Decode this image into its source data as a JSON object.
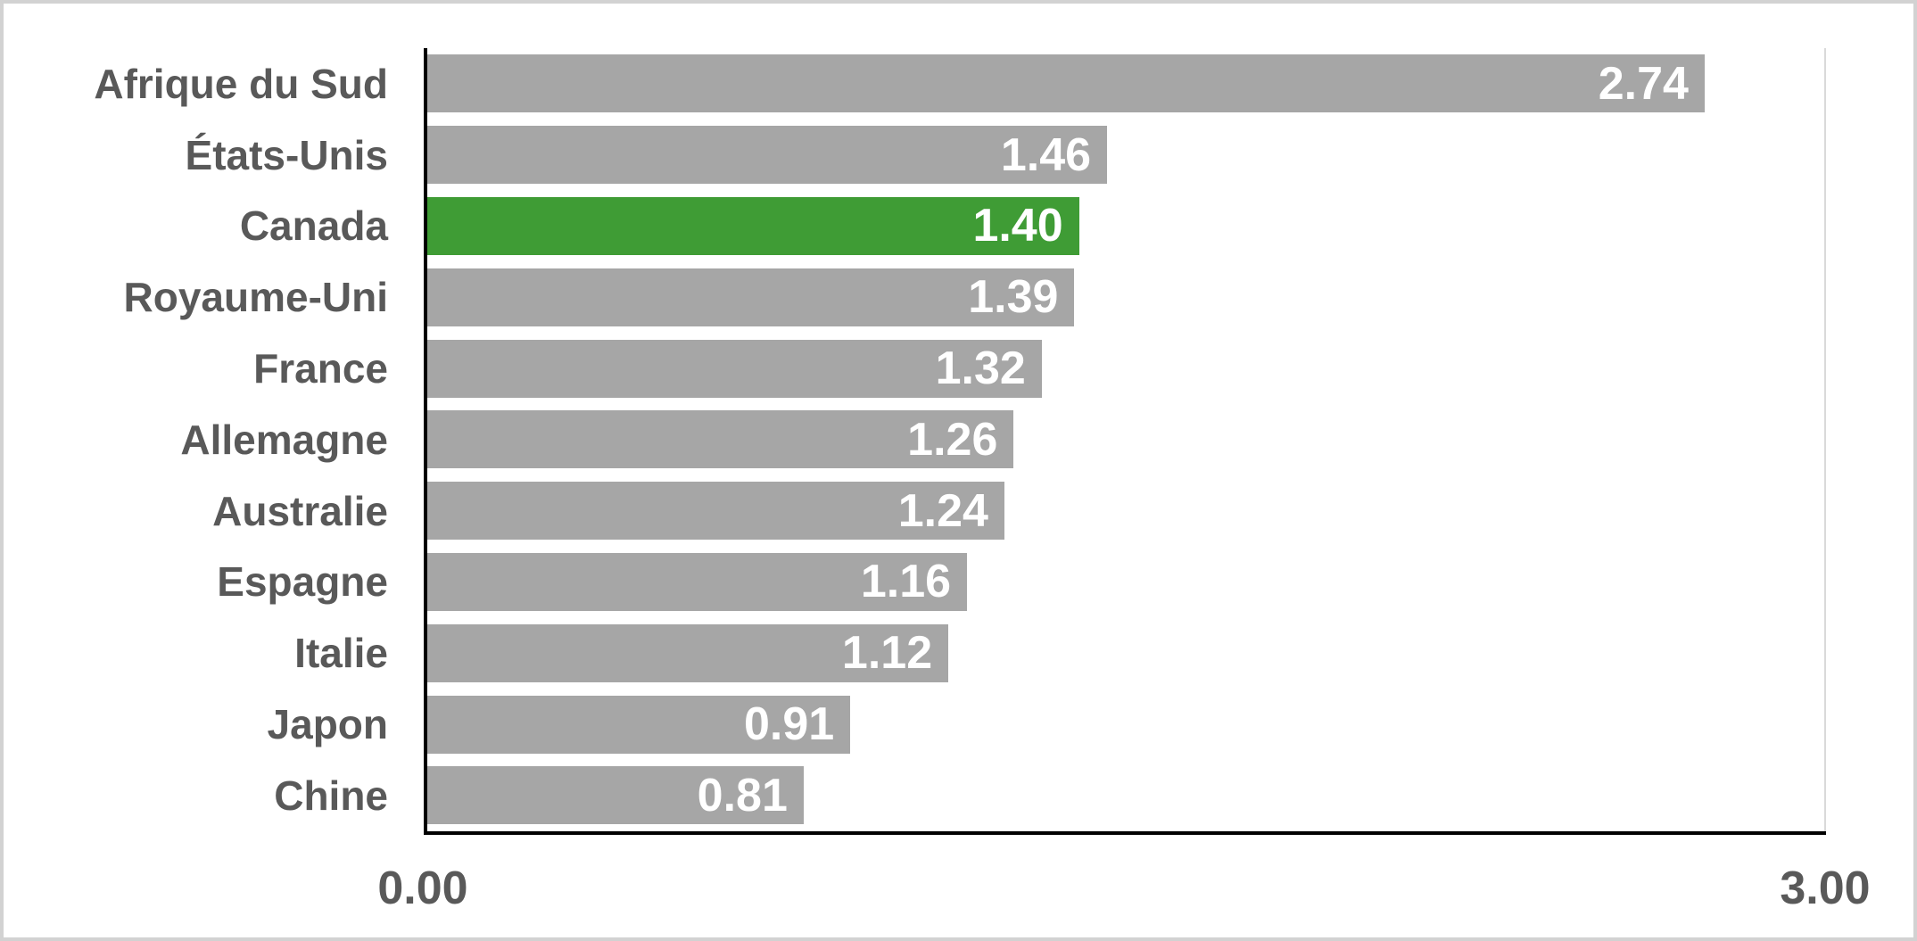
{
  "chart_data": {
    "type": "bar",
    "orientation": "horizontal",
    "title": "",
    "xlabel": "",
    "ylabel": "",
    "xlim": [
      0,
      3
    ],
    "x_tick_labels": [
      "0.00",
      "3.00"
    ],
    "grid": false,
    "legend": false,
    "categories": [
      "Afrique du Sud",
      "États-Unis",
      "Canada",
      "Royaume-Uni",
      "France",
      "Allemagne",
      "Australie",
      "Espagne",
      "Italie",
      "Japon",
      "Chine"
    ],
    "values": [
      2.74,
      1.46,
      1.4,
      1.39,
      1.32,
      1.26,
      1.24,
      1.16,
      1.12,
      0.91,
      0.81
    ],
    "value_labels": [
      "2.74",
      "1.46",
      "1.40",
      "1.39",
      "1.32",
      "1.26",
      "1.24",
      "1.16",
      "1.12",
      "0.91",
      "0.81"
    ],
    "highlight_category": "Canada",
    "colors": {
      "bar": "#a6a6a6",
      "highlight": "#3f9c35",
      "value_text": "#ffffff",
      "category_text": "#595959",
      "tick_text": "#595959",
      "axis_line": "#000000",
      "plot_border": "#d9d9d9",
      "outer_border": "#d2d2d2",
      "background": "#ffffff"
    }
  }
}
